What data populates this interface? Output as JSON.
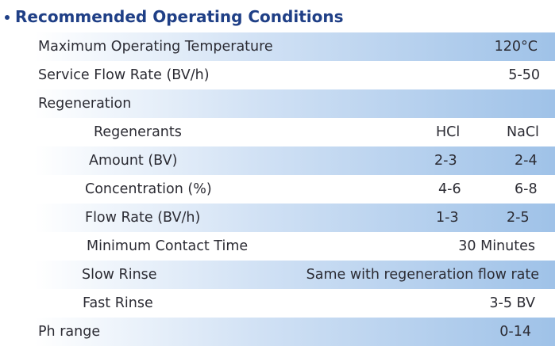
{
  "heading": "Recommended Operating Conditions",
  "rows": {
    "max_temp": {
      "label": "Maximum Operating Temperature",
      "value": "120°C"
    },
    "flow": {
      "label": "Service Flow Rate (BV/h)",
      "value": "5-50"
    },
    "regen": {
      "label": "Regeneration"
    },
    "regenerants": {
      "label": "Regenerants",
      "hcl": "HCl",
      "nacl": "NaCl"
    },
    "amount": {
      "label": "Amount (BV)",
      "hcl": "2-3",
      "nacl": "2-4"
    },
    "concentration": {
      "label": "Concentration (%)",
      "hcl": "4-6",
      "nacl": "6-8"
    },
    "regen_flow": {
      "label": "Flow Rate (BV/h)",
      "hcl": "1-3",
      "nacl": "2-5"
    },
    "contact": {
      "label": "Minimum Contact Time",
      "value": "30 Minutes"
    },
    "slow_rinse": {
      "label": "Slow Rinse",
      "value": "Same with regeneration flow rate"
    },
    "fast_rinse": {
      "label": "Fast Rinse",
      "value": "3-5 BV"
    },
    "ph": {
      "label": "Ph range",
      "value": "0-14"
    }
  },
  "colors": {
    "heading": "#1f3f86",
    "band_light": "#cfe0f4",
    "band_dark": "#9fc2e8"
  }
}
